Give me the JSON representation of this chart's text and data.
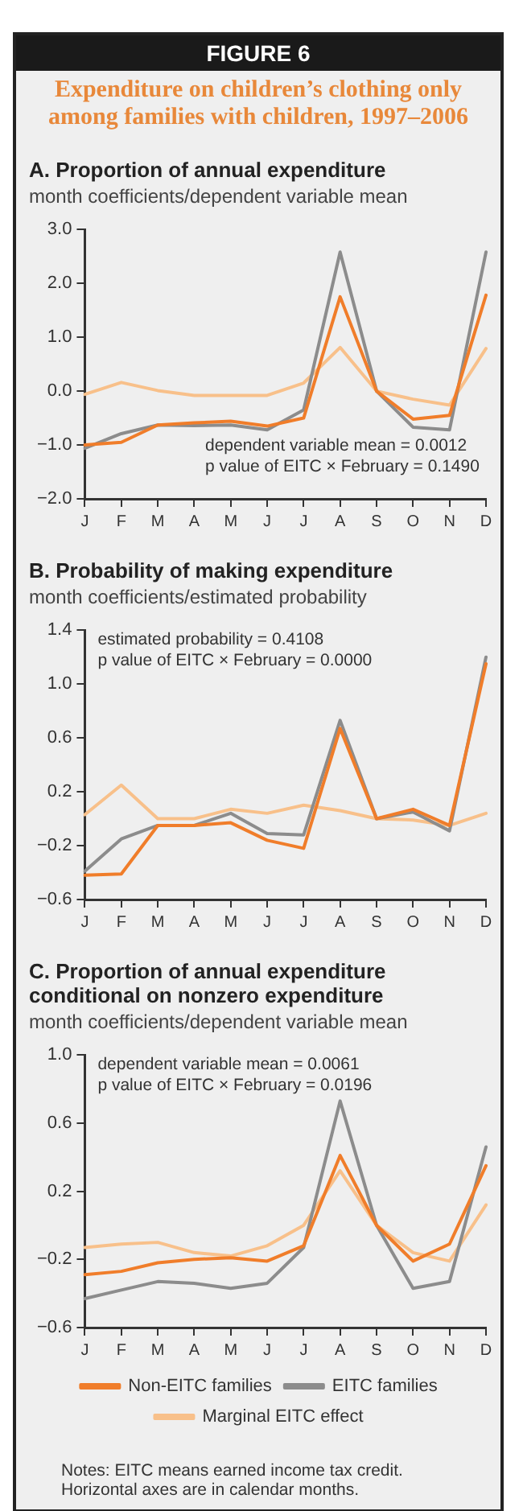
{
  "chart_data": [
    {
      "type": "other",
      "title": "FIGURE 6",
      "subtitle": "Expenditure on children’s clothing only among families with children, 1997–2006"
    },
    {
      "type": "line",
      "title": "A. Proportion of annual expenditure",
      "ylabel": "month coefficients/dependent variable mean",
      "categories": [
        "J",
        "F",
        "M",
        "A",
        "M",
        "J",
        "J",
        "A",
        "S",
        "O",
        "N",
        "D"
      ],
      "series": [
        {
          "color": "#f07d2a",
          "values": [
            -1.0,
            -0.95,
            -0.63,
            -0.59,
            -0.56,
            -0.65,
            -0.5,
            1.75,
            0.0,
            -0.52,
            -0.45,
            1.78
          ]
        },
        {
          "color": "#8c8c8c",
          "values": [
            -1.06,
            -0.79,
            -0.63,
            -0.64,
            -0.63,
            -0.72,
            -0.35,
            2.58,
            0.0,
            -0.67,
            -0.72,
            2.58
          ]
        },
        {
          "color": "#f8c08a",
          "values": [
            -0.06,
            0.16,
            0.01,
            -0.08,
            -0.08,
            -0.08,
            0.15,
            0.81,
            0.0,
            -0.15,
            -0.26,
            0.79
          ]
        }
      ],
      "ylim": [
        -2,
        3
      ],
      "yticks": [
        {
          "value": -2,
          "label": "−2.0"
        },
        {
          "value": -1,
          "label": "−1.0"
        },
        {
          "value": 0,
          "label": "0.0"
        },
        {
          "value": 1,
          "label": "1.0"
        },
        {
          "value": 2,
          "label": "2.0"
        },
        {
          "value": 3,
          "label": "3.0"
        }
      ],
      "annotations": [
        "dependent variable mean = 0.0012",
        "p value of EITC × February = 0.1490"
      ],
      "grid": false,
      "legend": false,
      "marker": "none",
      "line_style": "solid"
    },
    {
      "type": "line",
      "title": "B. Probability of making expenditure",
      "ylabel": "month coefficients/estimated probability",
      "categories": [
        "J",
        "F",
        "M",
        "A",
        "M",
        "J",
        "J",
        "A",
        "S",
        "O",
        "N",
        "D"
      ],
      "series": [
        {
          "color": "#f07d2a",
          "values": [
            -0.42,
            -0.41,
            -0.05,
            -0.05,
            -0.03,
            -0.16,
            -0.22,
            0.67,
            0.0,
            0.07,
            -0.05,
            1.15
          ]
        },
        {
          "color": "#8c8c8c",
          "values": [
            -0.39,
            -0.15,
            -0.05,
            -0.05,
            0.04,
            -0.11,
            -0.12,
            0.73,
            0.0,
            0.05,
            -0.09,
            1.2
          ]
        },
        {
          "color": "#f8c08a",
          "values": [
            0.03,
            0.25,
            0.0,
            0.0,
            0.07,
            0.04,
            0.1,
            0.06,
            0.0,
            -0.01,
            -0.05,
            0.04
          ]
        }
      ],
      "ylim": [
        -0.6,
        1.4
      ],
      "yticks": [
        {
          "value": -0.6,
          "label": "−0.6"
        },
        {
          "value": -0.2,
          "label": "−0.2"
        },
        {
          "value": 0.2,
          "label": "0.2"
        },
        {
          "value": 0.6,
          "label": "0.6"
        },
        {
          "value": 1.0,
          "label": "1.0"
        },
        {
          "value": 1.4,
          "label": "1.4"
        }
      ],
      "annotations": [
        "estimated probability = 0.4108",
        "p value of EITC × February = 0.0000"
      ],
      "grid": false,
      "legend": false,
      "marker": "none",
      "line_style": "solid"
    },
    {
      "type": "line",
      "title": "C. Proportion of annual expenditure conditional on nonzero expenditure",
      "ylabel": "month coefficients/dependent variable mean",
      "categories": [
        "J",
        "F",
        "M",
        "A",
        "M",
        "J",
        "J",
        "A",
        "S",
        "O",
        "N",
        "D"
      ],
      "series": [
        {
          "name": "Non-EITC families",
          "color": "#f07d2a",
          "values": [
            -0.29,
            -0.27,
            -0.22,
            -0.2,
            -0.19,
            -0.21,
            -0.12,
            0.41,
            0.0,
            -0.21,
            -0.11,
            0.35
          ]
        },
        {
          "name": "EITC families",
          "color": "#8c8c8c",
          "values": [
            -0.43,
            -0.38,
            -0.33,
            -0.34,
            -0.37,
            -0.34,
            -0.13,
            0.73,
            0.0,
            -0.37,
            -0.33,
            0.46
          ]
        },
        {
          "name": "Marginal EITC effect",
          "color": "#f8c08a",
          "values": [
            -0.13,
            -0.11,
            -0.1,
            -0.16,
            -0.18,
            -0.12,
            0.0,
            0.32,
            0.0,
            -0.16,
            -0.21,
            0.12
          ]
        }
      ],
      "ylim": [
        -0.6,
        1.0
      ],
      "yticks": [
        {
          "value": -0.6,
          "label": "−0.6"
        },
        {
          "value": -0.2,
          "label": "−0.2"
        },
        {
          "value": 0.2,
          "label": "0.2"
        },
        {
          "value": 0.6,
          "label": "0.6"
        },
        {
          "value": 1.0,
          "label": "1.0"
        }
      ],
      "annotations": [
        "dependent variable mean = 0.0061",
        "p value of EITC × February = 0.0196"
      ],
      "grid": false,
      "legend": "bottom",
      "marker": "none",
      "line_style": "solid"
    },
    {
      "type": "other",
      "annotations": [
        "Notes: EITC means earned income tax credit. Horizontal axes are in calendar months."
      ]
    }
  ]
}
